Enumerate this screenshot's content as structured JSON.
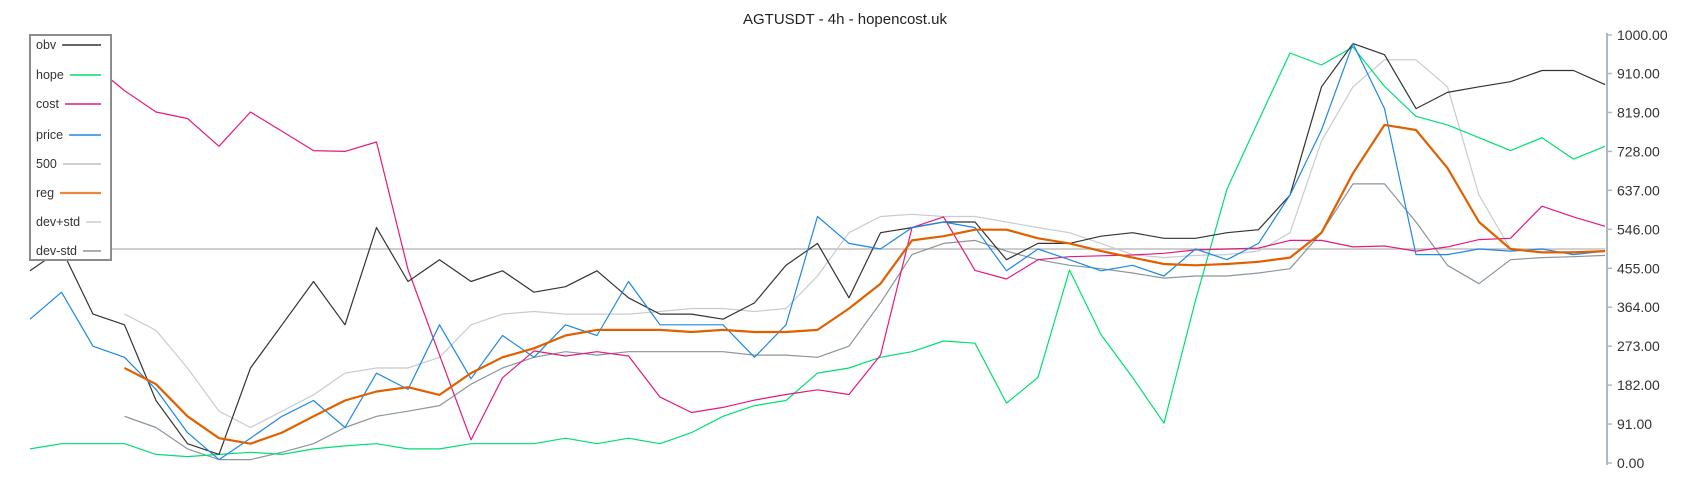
{
  "chart_data": {
    "type": "line",
    "title": "AGTUSDT - 4h - hopencost.uk",
    "xlabel": "",
    "ylabel": "",
    "ylim": [
      0,
      1000
    ],
    "y_ticks": [
      0,
      91,
      182,
      273,
      364,
      455,
      546,
      637,
      728,
      819,
      910,
      1000
    ],
    "y_tick_labels": [
      "0.00",
      "91.00",
      "182.00",
      "273.00",
      "364.00",
      "455.00",
      "546.00",
      "637.00",
      "728.00",
      "819.00",
      "910.00",
      "1000.00"
    ],
    "y_axis_position": "right",
    "grid": false,
    "legend_placement": "top-left",
    "x": [
      0,
      1,
      2,
      3,
      4,
      5,
      6,
      7,
      8,
      9,
      10,
      11,
      12,
      13,
      14,
      15,
      16,
      17,
      18,
      19,
      20,
      21,
      22,
      23,
      24,
      25,
      26,
      27,
      28,
      29,
      30,
      31,
      32,
      33,
      34,
      35,
      36,
      37,
      38,
      39,
      40,
      41,
      42,
      43,
      44,
      45,
      46,
      47,
      48,
      49,
      50
    ],
    "series": [
      {
        "name": "obv",
        "color": "#333333",
        "width": 1.2,
        "values": [
          449,
          500,
          348,
          323,
          146,
          45,
          20,
          222,
          323,
          424,
          323,
          550,
          424,
          475,
          424,
          449,
          399,
          412,
          449,
          386,
          348,
          348,
          336,
          374,
          462,
          513,
          386,
          538,
          550,
          563,
          563,
          475,
          513,
          513,
          530,
          538,
          525,
          525,
          538,
          545,
          626,
          879,
          980,
          954,
          828,
          866,
          879,
          891,
          917,
          917,
          884
        ]
      },
      {
        "name": "hope",
        "color": "#00e070",
        "width": 1.2,
        "values": [
          33,
          45,
          45,
          45,
          20,
          15,
          20,
          25,
          20,
          33,
          40,
          45,
          33,
          33,
          45,
          45,
          45,
          58,
          45,
          58,
          45,
          71,
          109,
          134,
          146,
          210,
          222,
          247,
          260,
          285,
          280,
          140,
          200,
          451,
          300,
          200,
          93,
          380,
          640,
          800,
          958,
          930,
          972,
          880,
          810,
          790,
          760,
          730,
          760,
          710,
          740
        ]
      },
      {
        "name": "cost",
        "color": "#e6197e",
        "width": 1.2,
        "values": [
          960,
          945,
          930,
          870,
          820,
          805,
          740,
          820,
          775,
          730,
          728,
          750,
          452,
          252,
          54,
          199,
          262,
          250,
          260,
          250,
          154,
          118,
          130,
          147,
          160,
          171,
          160,
          252,
          550,
          575,
          450,
          430,
          475,
          482,
          484,
          486,
          490,
          498,
          500,
          502,
          520,
          520,
          505,
          507,
          495,
          505,
          522,
          525,
          600,
          575,
          553
        ]
      },
      {
        "name": "price",
        "color": "#1e88e5",
        "width": 1.2,
        "values": [
          336,
          399,
          273,
          247,
          172,
          71,
          8,
          58,
          109,
          146,
          83,
          210,
          172,
          323,
          197,
          298,
          247,
          323,
          298,
          424,
          323,
          323,
          323,
          247,
          323,
          576,
          513,
          500,
          550,
          563,
          550,
          449,
          500,
          475,
          449,
          462,
          437,
          500,
          475,
          513,
          626,
          778,
          980,
          828,
          487,
          487,
          500,
          495,
          500,
          487,
          495
        ]
      },
      {
        "name": "500",
        "color": "#bdbdbd",
        "width": 1.6,
        "values": [
          500,
          500,
          500,
          500,
          500,
          500,
          500,
          500,
          500,
          500,
          500,
          500,
          500,
          500,
          500,
          500,
          500,
          500,
          500,
          500,
          500,
          500,
          500,
          500,
          500,
          500,
          500,
          500,
          500,
          500,
          500,
          500,
          500,
          500,
          500,
          500,
          500,
          500,
          500,
          500,
          500,
          500,
          500,
          500,
          500,
          500,
          500,
          500,
          500,
          500,
          500
        ]
      },
      {
        "name": "reg",
        "color": "#e06000",
        "width": 2.2,
        "values": [
          null,
          null,
          null,
          222,
          184,
          109,
          58,
          45,
          71,
          109,
          146,
          167,
          177,
          159,
          210,
          247,
          268,
          298,
          311,
          311,
          311,
          306,
          311,
          306,
          306,
          311,
          361,
          419,
          520,
          530,
          545,
          545,
          525,
          513,
          495,
          480,
          465,
          462,
          465,
          470,
          480,
          538,
          677,
          790,
          778,
          689,
          563,
          500,
          492,
          492,
          495
        ]
      },
      {
        "name": "dev+std",
        "color": "#c7ccd1",
        "width": 1.2,
        "values": [
          null,
          null,
          null,
          348,
          310,
          222,
          121,
          83,
          121,
          159,
          210,
          222,
          222,
          247,
          323,
          348,
          354,
          348,
          348,
          348,
          354,
          361,
          361,
          354,
          361,
          437,
          538,
          576,
          581,
          576,
          576,
          563,
          550,
          538,
          513,
          487,
          480,
          485,
          487,
          495,
          538,
          752,
          879,
          942,
          942,
          879,
          626,
          500,
          500,
          500,
          500
        ]
      },
      {
        "name": "dev-std",
        "color": "#8a959e",
        "width": 1.2,
        "values": [
          null,
          null,
          null,
          109,
          83,
          33,
          8,
          8,
          25,
          45,
          83,
          109,
          121,
          134,
          184,
          222,
          247,
          260,
          252,
          260,
          260,
          260,
          260,
          252,
          252,
          247,
          273,
          374,
          487,
          513,
          520,
          495,
          475,
          462,
          454,
          444,
          432,
          437,
          437,
          444,
          454,
          538,
          652,
          652,
          563,
          462,
          419,
          475,
          480,
          482,
          485
        ]
      }
    ]
  }
}
